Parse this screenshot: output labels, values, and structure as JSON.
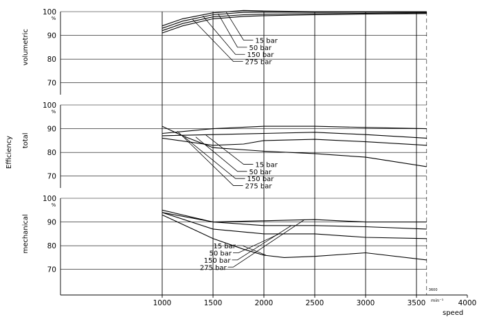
{
  "chart_data": {
    "type": "line",
    "shared": {
      "xlabel": "speed",
      "x_unit": "min⁻¹",
      "xlim": [
        0,
        4000
      ],
      "x_ticks": [
        1000,
        1500,
        2000,
        2500,
        3000,
        3500,
        4000
      ],
      "y_group_label": "Efficiency",
      "y_unit": "%",
      "speed_limit": 3600,
      "speed_limit_label": "3600",
      "pressure_labels": [
        "15 bar",
        "50 bar",
        "150 bar",
        "275 bar"
      ]
    },
    "panels": [
      {
        "ylabel": "volumetric",
        "ylim": [
          65,
          100
        ],
        "y_ticks": [
          70,
          80,
          90,
          100
        ],
        "series": [
          {
            "name": "15 bar",
            "x": [
              1000,
              1200,
              1500,
              1800,
              2000,
              2500,
              3000,
              3600
            ],
            "y": [
              94,
              97,
              99.5,
              100.5,
              100.3,
              100,
              100,
              100
            ]
          },
          {
            "name": "50 bar",
            "x": [
              1000,
              1200,
              1500,
              1800,
              2000,
              2500,
              3000,
              3600
            ],
            "y": [
              93,
              96,
              98.7,
              99.7,
              99.8,
              99.7,
              99.8,
              99.8
            ]
          },
          {
            "name": "150 bar",
            "x": [
              1000,
              1200,
              1500,
              1800,
              2000,
              2500,
              3000,
              3600
            ],
            "y": [
              92,
              95,
              97.8,
              98.7,
              98.9,
              99.1,
              99.3,
              99.5
            ]
          },
          {
            "name": "275 bar",
            "x": [
              1000,
              1200,
              1500,
              1800,
              2000,
              2500,
              3000,
              3600
            ],
            "y": [
              91,
              94,
              97,
              98,
              98.3,
              98.7,
              99,
              99.2
            ]
          }
        ]
      },
      {
        "ylabel": "total",
        "ylim": [
          65,
          100
        ],
        "y_ticks": [
          70,
          80,
          90,
          100
        ],
        "series": [
          {
            "name": "15 bar",
            "x": [
              1000,
              1500,
              2000,
              2500,
              3000,
              3600
            ],
            "y": [
              88,
              90,
              91,
              91,
              90.5,
              90
            ]
          },
          {
            "name": "50 bar",
            "x": [
              1000,
              1500,
              2000,
              2500,
              3000,
              3600
            ],
            "y": [
              87,
              87.5,
              88,
              88.5,
              87.5,
              86
            ]
          },
          {
            "name": "150 bar",
            "x": [
              1000,
              1500,
              1800,
              2000,
              2500,
              3000,
              3600
            ],
            "y": [
              86,
              83,
              83.5,
              85,
              85.5,
              84.5,
              83
            ]
          },
          {
            "name": "275 bar",
            "x": [
              1000,
              1200,
              1500,
              2000,
              2500,
              3000,
              3600
            ],
            "y": [
              91,
              87,
              82,
              80.5,
              79.5,
              78,
              74
            ]
          }
        ]
      },
      {
        "ylabel": "mechanical",
        "ylim": [
          65,
          100
        ],
        "y_ticks": [
          70,
          80,
          90,
          100
        ],
        "series": [
          {
            "name": "15 bar",
            "x": [
              1000,
              1500,
              2000,
              2500,
              3000,
              3600
            ],
            "y": [
              95,
              90,
              90.5,
              91,
              90,
              90
            ]
          },
          {
            "name": "50 bar",
            "x": [
              1000,
              1500,
              2000,
              2500,
              3000,
              3600
            ],
            "y": [
              94,
              90,
              88.5,
              88.5,
              88,
              87
            ]
          },
          {
            "name": "150 bar",
            "x": [
              1000,
              1500,
              2000,
              2500,
              3000,
              3600
            ],
            "y": [
              94,
              87,
              85,
              85,
              83.5,
              83
            ]
          },
          {
            "name": "275 bar",
            "x": [
              1000,
              1300,
              1500,
              1800,
              2000,
              2200,
              2500,
              3000,
              3600
            ],
            "y": [
              93,
              87,
              83,
              78.5,
              76,
              75,
              75.5,
              77,
              74
            ]
          }
        ]
      }
    ]
  }
}
